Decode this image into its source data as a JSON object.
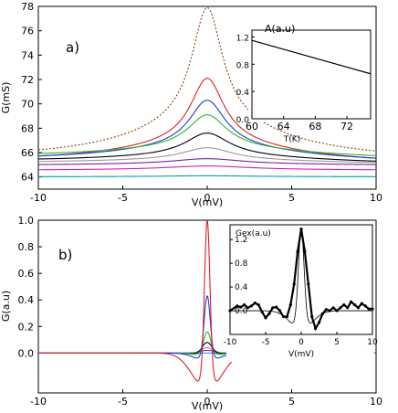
{
  "chart_data": [
    {
      "panel_label": "a)",
      "type": "line",
      "xlabel": "V(mV)",
      "ylabel": "G(mS)",
      "xlim": [
        -10,
        10
      ],
      "ylim": [
        63,
        78
      ],
      "x_ticks": [
        -10,
        -5,
        0,
        5,
        10
      ],
      "x_tick_labels": [
        "-10",
        "-5",
        "0",
        "5",
        "10"
      ],
      "y_ticks": [
        64,
        66,
        68,
        70,
        72,
        74,
        76,
        78
      ],
      "y_tick_labels": [
        "64",
        "66",
        "68",
        "70",
        "72",
        "74",
        "76",
        "78"
      ],
      "series": [
        {
          "color": "#8a3b12",
          "style": "dotted",
          "peak": 77.9,
          "left": 65.4,
          "right": 65.3,
          "width": 1.1
        },
        {
          "color": "#e02020",
          "style": "solid",
          "peak": 72.1,
          "left": 65.2,
          "right": 65.0,
          "width": 1.2
        },
        {
          "color": "#1f3fd0",
          "style": "solid",
          "peak": 70.3,
          "left": 65.3,
          "right": 65.1,
          "width": 1.3
        },
        {
          "color": "#2bb52b",
          "style": "solid",
          "peak": 69.1,
          "left": 65.6,
          "right": 65.4,
          "width": 1.4
        },
        {
          "color": "#000000",
          "style": "solid",
          "peak": 67.6,
          "left": 65.2,
          "right": 65.0,
          "width": 1.6
        },
        {
          "color": "#9a9a9a",
          "style": "solid",
          "peak": 66.4,
          "left": 65.1,
          "right": 65.0,
          "width": 1.8
        },
        {
          "color": "#7a1fa0",
          "style": "solid",
          "peak": 65.5,
          "left": 64.9,
          "right": 64.9,
          "width": 2.5
        },
        {
          "color": "#d020c0",
          "style": "solid",
          "peak": 64.9,
          "left": 64.5,
          "right": 64.5,
          "width": 3.0
        },
        {
          "color": "#00a0a8",
          "style": "solid",
          "peak": 64.1,
          "left": 64.0,
          "right": 64.0,
          "width": 3.0
        }
      ],
      "inset": {
        "ylabel": "A(a.u)",
        "xlabel": "T(K)",
        "xlim": [
          60,
          75
        ],
        "ylim": [
          0,
          1.3
        ],
        "x_ticks": [
          60,
          64,
          68,
          72
        ],
        "x_tick_labels": [
          "60",
          "64",
          "68",
          "72"
        ],
        "y_ticks": [
          0.0,
          0.4,
          0.8,
          1.2
        ],
        "y_tick_labels": [
          "0.0",
          "0.4",
          "0.8",
          "1.2"
        ],
        "line": {
          "x": [
            60,
            75
          ],
          "y": [
            1.15,
            0.66
          ],
          "color": "#000000"
        }
      }
    },
    {
      "panel_label": "b)",
      "type": "line",
      "xlabel": "V(mV)",
      "ylabel": "G(a.u)",
      "xlim": [
        -10,
        10
      ],
      "ylim": [
        -0.3,
        1.0
      ],
      "x_ticks": [
        -10,
        -5,
        0,
        5,
        10
      ],
      "x_tick_labels": [
        "-10",
        "-5",
        "0",
        "5",
        "10"
      ],
      "y_ticks": [
        0.0,
        0.2,
        0.4,
        0.6,
        0.8,
        1.0
      ],
      "y_tick_labels": [
        "0.0",
        "0.2",
        "0.4",
        "0.6",
        "0.8",
        "1.0"
      ],
      "series": [
        {
          "color": "#e02020",
          "amp": 1.0,
          "width": 0.22,
          "dip": -0.28,
          "dip_width": 1.2
        },
        {
          "color": "#1f3fd0",
          "amp": 0.43,
          "width": 0.25,
          "dip": -0.06,
          "dip_width": 1.0
        },
        {
          "color": "#2bb52b",
          "amp": 0.16,
          "width": 0.3,
          "dip": -0.02,
          "dip_width": 1.0
        },
        {
          "color": "#000000",
          "amp": 0.08,
          "width": 0.4,
          "dip": -0.01,
          "dip_width": 1.0
        },
        {
          "color": "#9a9a9a",
          "amp": 0.04,
          "width": 0.5,
          "dip": 0.0,
          "dip_width": 1.0
        },
        {
          "color": "#7a1fa0",
          "amp": 0.02,
          "width": 0.6,
          "dip": 0.0,
          "dip_width": 1.0
        },
        {
          "color": "#1e88e5",
          "amp": 0.0,
          "width": 1.0,
          "dip": 0.0,
          "dip_width": 1.0
        }
      ],
      "inset": {
        "ylabel": "Gex(a.u)",
        "xlabel": "V(mV)",
        "xlim": [
          -10,
          10
        ],
        "ylim": [
          -0.4,
          1.45
        ],
        "x_ticks": [
          -10,
          -5,
          0,
          5,
          10
        ],
        "x_tick_labels": [
          "-10",
          "-5",
          "0",
          "5",
          "10"
        ],
        "y_ticks": [
          0.0,
          0.4,
          0.8,
          1.2
        ],
        "y_tick_labels": [
          "0.0",
          "0.4",
          "0.8",
          "1.2"
        ],
        "data_points": [
          [
            -10,
            0.0
          ],
          [
            -9,
            0.08
          ],
          [
            -8.5,
            0.06
          ],
          [
            -8,
            0.1
          ],
          [
            -7.5,
            0.05
          ],
          [
            -7,
            0.08
          ],
          [
            -6.5,
            0.13
          ],
          [
            -6,
            0.1
          ],
          [
            -5.5,
            -0.02
          ],
          [
            -5,
            -0.12
          ],
          [
            -4.5,
            -0.05
          ],
          [
            -4,
            0.05
          ],
          [
            -3.5,
            0.06
          ],
          [
            -3,
            0.0
          ],
          [
            -2.5,
            -0.1
          ],
          [
            -2,
            -0.1
          ],
          [
            -1.5,
            0.1
          ],
          [
            -1,
            0.45
          ],
          [
            -0.5,
            1.0
          ],
          [
            0,
            1.38
          ],
          [
            0.5,
            1.0
          ],
          [
            1,
            0.45
          ],
          [
            1.5,
            -0.1
          ],
          [
            2,
            -0.3
          ],
          [
            2.5,
            -0.2
          ],
          [
            3,
            -0.05
          ],
          [
            3.5,
            0.02
          ],
          [
            4,
            0.0
          ],
          [
            4.5,
            0.05
          ],
          [
            5,
            0.0
          ],
          [
            5.5,
            0.05
          ],
          [
            6,
            0.1
          ],
          [
            6.5,
            0.05
          ],
          [
            7,
            0.15
          ],
          [
            7.5,
            0.1
          ],
          [
            8,
            0.05
          ],
          [
            8.5,
            0.12
          ],
          [
            9,
            0.08
          ],
          [
            9.5,
            0.03
          ],
          [
            10,
            0.03
          ]
        ],
        "fit": {
          "amp": 1.38,
          "width": 0.55,
          "dip": -0.32,
          "dip_width": 2.2
        }
      }
    }
  ]
}
